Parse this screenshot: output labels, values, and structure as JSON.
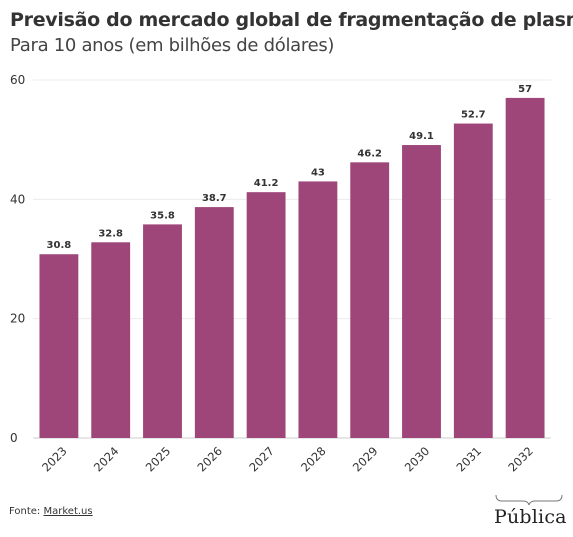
{
  "colors": {
    "bar": "#9e4579",
    "grid": "#ebebeb",
    "axis": "#cccccc",
    "text": "#333333"
  },
  "header": {
    "title": "Previsão do mercado global de fragmentação de plasma",
    "subtitle": "Para 10 anos (em bilhões de dólares)"
  },
  "chart_data": {
    "type": "bar",
    "title": "Previsão do mercado global de fragmentação de plasma",
    "subtitle": "Para 10 anos (em bilhões de dólares)",
    "categories": [
      "2023",
      "2024",
      "2025",
      "2026",
      "2027",
      "2028",
      "2029",
      "2030",
      "2031",
      "2032"
    ],
    "values": [
      30.8,
      32.8,
      35.8,
      38.7,
      41.2,
      43,
      46.2,
      49.1,
      52.7,
      57
    ],
    "data_labels": [
      "30.8",
      "32.8",
      "35.8",
      "38.7",
      "41.2",
      "43",
      "46.2",
      "49.1",
      "52.7",
      "57"
    ],
    "yticks": [
      "0",
      "20",
      "40",
      "60"
    ],
    "ylim": [
      0,
      60
    ],
    "xlabel": "",
    "ylabel": "",
    "grid": true,
    "legend": "none"
  },
  "footer": {
    "source_label": "Fonte:",
    "source_name": "Market.us"
  },
  "logo": {
    "text": "Pública"
  }
}
